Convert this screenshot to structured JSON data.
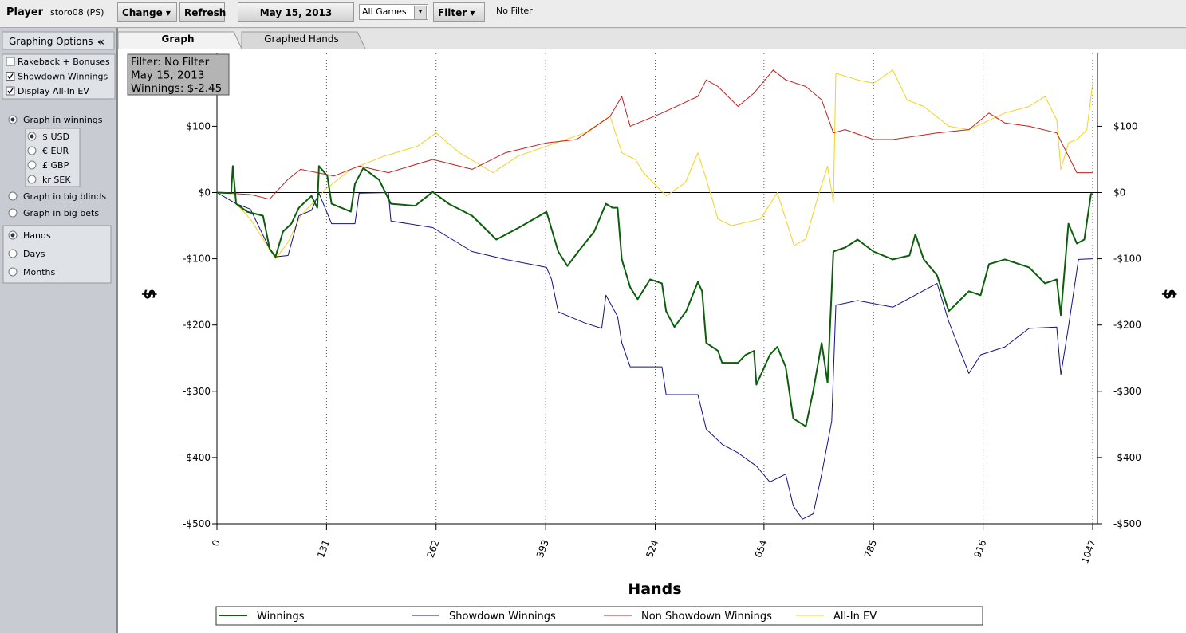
{
  "toolbar": {
    "player_label": "Player",
    "player": "storo08 (PS)",
    "change": "Change",
    "refresh": "Refresh",
    "date": "May 15, 2013",
    "games": "All Games",
    "filter": "Filter",
    "filter_status": "No Filter"
  },
  "sidebar": {
    "title": "Graphing Options",
    "collapse": "«",
    "checkboxes": [
      {
        "label": "Rakeback + Bonuses",
        "checked": false
      },
      {
        "label": "Showdown Winnings",
        "checked": true
      },
      {
        "label": "Display All-In EV",
        "checked": true
      }
    ],
    "modes": [
      {
        "label": "Graph in winnings",
        "selected": true
      },
      {
        "label": "Graph in big blinds",
        "selected": false
      },
      {
        "label": "Graph in big bets",
        "selected": false
      }
    ],
    "currencies": [
      {
        "label": "$ USD",
        "selected": true
      },
      {
        "label": "€ EUR",
        "selected": false
      },
      {
        "label": "£ GBP",
        "selected": false
      },
      {
        "label": "kr SEK",
        "selected": false
      }
    ],
    "periods": [
      {
        "label": "Hands",
        "selected": true
      },
      {
        "label": "Days",
        "selected": false
      },
      {
        "label": "Months",
        "selected": false
      }
    ]
  },
  "tabs": [
    "Graph",
    "Graphed Hands"
  ],
  "info_box": [
    "Filter: No Filter",
    "May 15, 2013",
    "Winnings: $-2.45"
  ],
  "chart_data": {
    "type": "line",
    "xlabel": "Hands",
    "ylabel": "$",
    "xlim": [
      0,
      1047
    ],
    "ylim": [
      -500,
      210
    ],
    "grid": "x",
    "xticks": [
      0,
      131,
      262,
      393,
      524,
      654,
      785,
      916,
      1047
    ],
    "yticks": [
      {
        "value": 100,
        "label": "$100"
      },
      {
        "value": 0,
        "label": "$0"
      },
      {
        "value": -100,
        "label": "-$100"
      },
      {
        "value": -200,
        "label": "-$200"
      },
      {
        "value": -300,
        "label": "-$300"
      },
      {
        "value": -400,
        "label": "-$400"
      },
      {
        "value": -500,
        "label": "-$500"
      }
    ],
    "series": [
      {
        "name": "Winnings",
        "color": "#0b5e0b",
        "width": 2,
        "x": [
          0,
          17,
          19,
          23,
          36,
          55,
          63,
          70,
          79,
          89,
          98,
          113,
          120,
          122,
          132,
          137,
          160,
          165,
          175,
          194,
          208,
          237,
          258,
          277,
          305,
          334,
          361,
          394,
          408,
          419,
          432,
          451,
          465,
          473,
          479,
          484,
          494,
          503,
          518,
          532,
          537,
          547,
          561,
          575,
          580,
          585,
          599,
          604,
          623,
          632,
          642,
          645,
          661,
          670,
          680,
          689,
          704,
          713,
          723,
          730,
          737,
          751,
          766,
          785,
          808,
          828,
          835,
          845,
          861,
          875,
          899,
          913,
          923,
          942,
          971,
          990,
          1004,
          1009,
          1018,
          1028,
          1037,
          1045,
          1047
        ],
        "values": [
          0,
          -1,
          40,
          -17,
          -29,
          -35,
          -85,
          -97,
          -59,
          -47,
          -23,
          -5,
          -23,
          40,
          25,
          -17,
          -29,
          13,
          37,
          19,
          -17,
          -20,
          1,
          -17,
          -35,
          -71,
          -53,
          -29,
          -89,
          -111,
          -89,
          -59,
          -17,
          -23,
          -23,
          -101,
          -143,
          -161,
          -131,
          -137,
          -179,
          -203,
          -179,
          -135,
          -149,
          -227,
          -239,
          -257,
          -257,
          -245,
          -239,
          -290,
          -245,
          -233,
          -263,
          -341,
          -353,
          -299,
          -227,
          -287,
          -89,
          -83,
          -71,
          -89,
          -101,
          -95,
          -63,
          -101,
          -125,
          -179,
          -149,
          -155,
          -108,
          -101,
          -113,
          -137,
          -131,
          -185,
          -47,
          -77,
          -71,
          -2,
          -2.45
        ]
      },
      {
        "name": "Showdown Winnings",
        "color": "#10108c",
        "width": 1,
        "x": [
          0,
          23,
          40,
          63,
          70,
          85,
          98,
          113,
          122,
          137,
          165,
          170,
          205,
          208,
          258,
          305,
          345,
          394,
          400,
          408,
          440,
          460,
          465,
          479,
          484,
          494,
          532,
          537,
          575,
          585,
          604,
          623,
          645,
          661,
          680,
          689,
          700,
          713,
          723,
          735,
          740,
          766,
          808,
          861,
          875,
          899,
          913,
          942,
          971,
          1004,
          1009,
          1018,
          1030,
          1047
        ],
        "values": [
          0,
          -17,
          -25,
          -85,
          -97,
          -95,
          -35,
          -27,
          -1,
          -47,
          -47,
          -1,
          0,
          -43,
          -53,
          -89,
          -101,
          -113,
          -131,
          -180,
          -197,
          -205,
          -155,
          -187,
          -227,
          -263,
          -263,
          -305,
          -305,
          -357,
          -380,
          -393,
          -413,
          -437,
          -425,
          -473,
          -493,
          -485,
          -425,
          -345,
          -170,
          -163,
          -173,
          -137,
          -195,
          -273,
          -245,
          -233,
          -205,
          -203,
          -275,
          -203,
          -101,
          -100
        ]
      },
      {
        "name": "Non Showdown Winnings",
        "color": "#c41e1e",
        "width": 1,
        "x": [
          0,
          40,
          63,
          70,
          85,
          100,
          140,
          170,
          205,
          258,
          305,
          345,
          394,
          430,
          470,
          484,
          494,
          532,
          575,
          585,
          599,
          623,
          642,
          665,
          680,
          704,
          723,
          737,
          751,
          785,
          808,
          861,
          899,
          923,
          942,
          971,
          1004,
          1018,
          1028,
          1047
        ],
        "values": [
          0,
          -3,
          -10,
          0,
          20,
          35,
          25,
          40,
          30,
          50,
          35,
          60,
          75,
          80,
          115,
          145,
          100,
          120,
          145,
          170,
          160,
          130,
          150,
          185,
          170,
          160,
          140,
          90,
          95,
          80,
          80,
          90,
          95,
          120,
          105,
          100,
          90,
          55,
          30,
          30
        ]
      },
      {
        "name": "All-In EV",
        "color": "#f2d21e",
        "width": 1,
        "x": [
          0,
          23,
          40,
          70,
          85,
          100,
          130,
          160,
          200,
          240,
          262,
          290,
          330,
          360,
          394,
          440,
          470,
          484,
          500,
          510,
          537,
          560,
          575,
          585,
          599,
          615,
          650,
          670,
          690,
          704,
          720,
          730,
          737,
          740,
          766,
          785,
          808,
          825,
          845,
          875,
          899,
          916,
          942,
          971,
          990,
          1004,
          1009,
          1018,
          1028,
          1040,
          1047
        ],
        "values": [
          0,
          -17,
          -40,
          -100,
          -75,
          -35,
          5,
          35,
          55,
          70,
          90,
          60,
          30,
          55,
          70,
          90,
          115,
          60,
          50,
          30,
          -5,
          15,
          60,
          20,
          -40,
          -50,
          -40,
          0,
          -80,
          -70,
          0,
          40,
          -15,
          180,
          170,
          165,
          185,
          140,
          130,
          100,
          95,
          105,
          120,
          130,
          145,
          110,
          35,
          75,
          80,
          95,
          165
        ]
      }
    ]
  }
}
